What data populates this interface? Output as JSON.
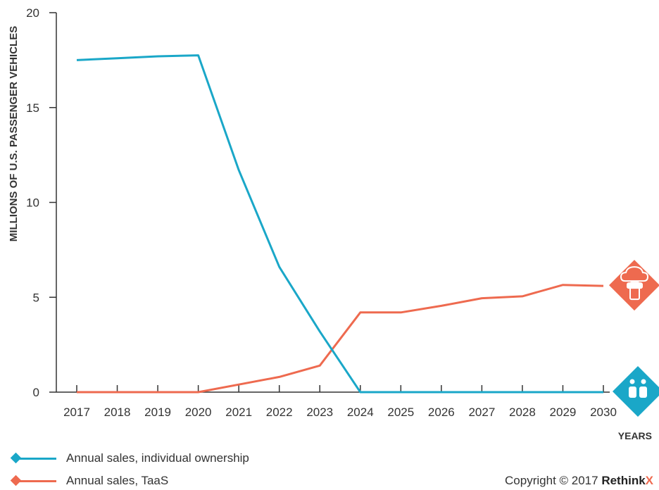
{
  "chart_data": {
    "type": "line",
    "ylabel": "MILLIONS OF U.S. PASSENGER VEHICLES",
    "xlabel": "YEARS",
    "ylim": [
      0,
      20
    ],
    "yticks": [
      0,
      5,
      10,
      15,
      20
    ],
    "x": [
      "2017",
      "2018",
      "2019",
      "2020",
      "2021",
      "2022",
      "2023",
      "2024",
      "2025",
      "2026",
      "2027",
      "2028",
      "2029",
      "2030"
    ],
    "series": [
      {
        "name": "Annual sales, individual ownership",
        "color": "#1aa7c8",
        "values": [
          17.5,
          17.6,
          17.7,
          17.75,
          11.7,
          6.6,
          3.2,
          0,
          0,
          0,
          0,
          0,
          0,
          0
        ],
        "end_icon": "shared-vehicles-icon"
      },
      {
        "name": "Annual sales, TaaS",
        "color": "#ee6a4f",
        "values": [
          0,
          0,
          0,
          0,
          0.4,
          0.8,
          1.4,
          4.2,
          4.2,
          4.55,
          4.95,
          5.05,
          5.65,
          5.6
        ],
        "end_icon": "car-on-phone-icon"
      }
    ],
    "grid": false,
    "legend_position": "bottom-left"
  },
  "footer": {
    "copyright": "Copyright © 2017 ",
    "brand": "Rethink",
    "brand_x": "X",
    "brand_x_color": "#ee6a4f"
  }
}
